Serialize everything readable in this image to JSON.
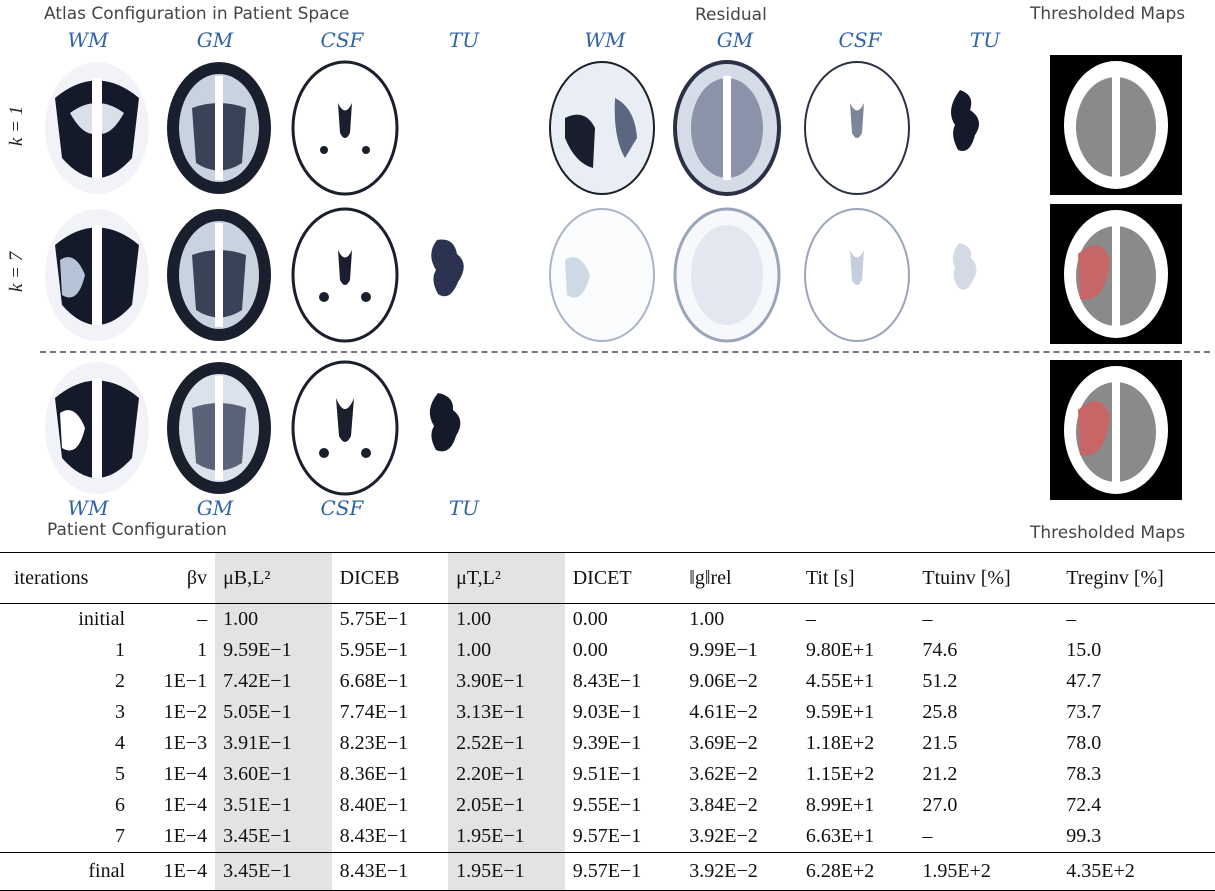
{
  "figure": {
    "top_left_title": "Atlas Configuration in Patient Space",
    "residual_title": "Residual",
    "thresholded_title_top": "Thresholded Maps",
    "thresholded_title_bottom": "Thresholded Maps",
    "bottom_left_title": "Patient Configuration",
    "column_labels": [
      "WM",
      "GM",
      "CSF",
      "TU"
    ],
    "row_labels": [
      "k = 1",
      "k = 7"
    ]
  },
  "table": {
    "headers": [
      "iterations",
      "βv",
      "μB,L²",
      "DICEB",
      "μT,L²",
      "DICET",
      "‖g‖rel",
      "Tit [s]",
      "Ttuinv [%]",
      "Treginv [%]"
    ],
    "rows": [
      [
        "initial",
        "–",
        "1.00",
        "5.75E−1",
        "1.00",
        "0.00",
        "1.00",
        "–",
        "–",
        "–"
      ],
      [
        "1",
        "1",
        "9.59E−1",
        "5.95E−1",
        "1.00",
        "0.00",
        "9.99E−1",
        "9.80E+1",
        "74.6",
        "15.0"
      ],
      [
        "2",
        "1E−1",
        "7.42E−1",
        "6.68E−1",
        "3.90E−1",
        "8.43E−1",
        "9.06E−2",
        "4.55E+1",
        "51.2",
        "47.7"
      ],
      [
        "3",
        "1E−2",
        "5.05E−1",
        "7.74E−1",
        "3.13E−1",
        "9.03E−1",
        "4.61E−2",
        "9.59E+1",
        "25.8",
        "73.7"
      ],
      [
        "4",
        "1E−3",
        "3.91E−1",
        "8.23E−1",
        "2.52E−1",
        "9.39E−1",
        "3.69E−2",
        "1.18E+2",
        "21.5",
        "78.0"
      ],
      [
        "5",
        "1E−4",
        "3.60E−1",
        "8.36E−1",
        "2.20E−1",
        "9.51E−1",
        "3.62E−2",
        "1.15E+2",
        "21.2",
        "78.3"
      ],
      [
        "6",
        "1E−4",
        "3.51E−1",
        "8.40E−1",
        "2.05E−1",
        "9.55E−1",
        "3.84E−2",
        "8.99E+1",
        "27.0",
        "72.4"
      ],
      [
        "7",
        "1E−4",
        "3.45E−1",
        "8.43E−1",
        "1.95E−1",
        "9.57E−1",
        "3.92E−2",
        "6.63E+1",
        "–",
        "99.3"
      ]
    ],
    "final": [
      "final",
      "1E−4",
      "3.45E−1",
      "8.43E−1",
      "1.95E−1",
      "9.57E−1",
      "3.92E−2",
      "6.28E+2",
      "1.95E+2",
      "4.35E+2"
    ]
  }
}
